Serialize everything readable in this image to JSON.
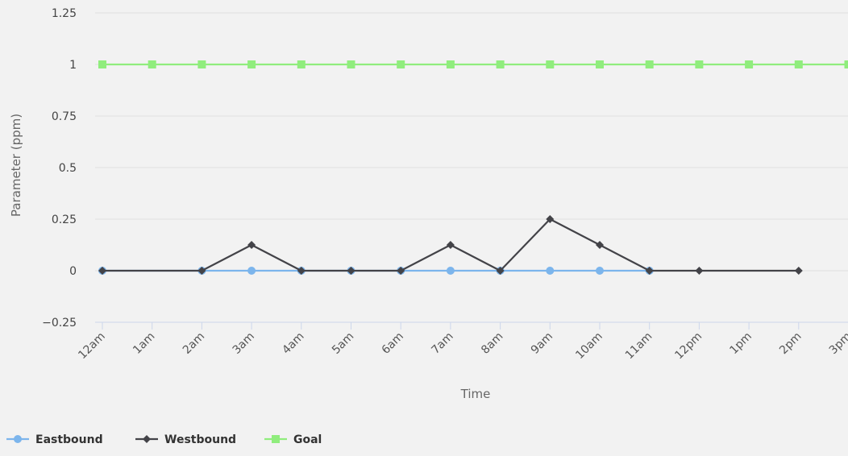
{
  "chart_data": {
    "type": "line",
    "title": "",
    "xlabel": "Time",
    "ylabel": "Parameter (ppm)",
    "categories": [
      "12am",
      "1am",
      "2am",
      "3am",
      "4am",
      "5am",
      "6am",
      "7am",
      "8am",
      "9am",
      "10am",
      "11am",
      "12pm",
      "1pm",
      "2pm",
      "3pm"
    ],
    "ylim": [
      -0.25,
      1.25
    ],
    "yticks": [
      "−0.25",
      "0",
      "0.25",
      "0.5",
      "0.75",
      "1",
      "1.25"
    ],
    "ytick_values": [
      -0.25,
      0,
      0.25,
      0.5,
      0.75,
      1,
      1.25
    ],
    "grid": true,
    "legend_position": "bottom-left",
    "series": [
      {
        "name": "Eastbound",
        "color": "#7cb5ec",
        "marker": "circle",
        "values": [
          0,
          null,
          0,
          0,
          0,
          0,
          0,
          0,
          0,
          0,
          0,
          0,
          null,
          null,
          null,
          null
        ]
      },
      {
        "name": "Westbound",
        "color": "#434348",
        "marker": "diamond",
        "values": [
          0,
          null,
          0,
          0.125,
          0,
          0,
          0,
          0.125,
          0,
          0.25,
          0.125,
          0,
          0,
          null,
          0,
          null
        ]
      },
      {
        "name": "Goal",
        "color": "#90ed7d",
        "marker": "square",
        "values": [
          1,
          1,
          1,
          1,
          1,
          1,
          1,
          1,
          1,
          1,
          1,
          1,
          1,
          1,
          1,
          1
        ]
      }
    ]
  }
}
